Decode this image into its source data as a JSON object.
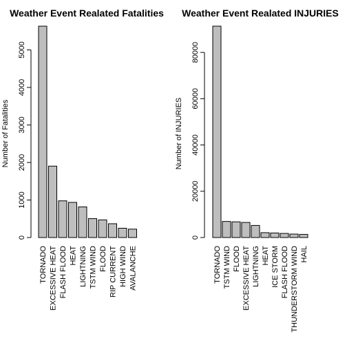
{
  "chart_data": [
    {
      "type": "bar",
      "title": "Weather Event Realated Fatalities",
      "xlabel": "",
      "ylabel": "Number of Fatalities",
      "ylim": [
        0,
        5633
      ],
      "yticks": [
        0,
        1000,
        2000,
        3000,
        4000,
        5000
      ],
      "categories": [
        "TORNADO",
        "EXCESSIVE HEAT",
        "FLASH FLOOD",
        "HEAT",
        "LIGHTNING",
        "TSTM WIND",
        "FLOOD",
        "RIP CURRENT",
        "HIGH WIND",
        "AVALANCHE"
      ],
      "values": [
        5633,
        1903,
        978,
        937,
        816,
        504,
        470,
        368,
        248,
        224
      ],
      "bar_color": "#bebebe",
      "grid": false
    },
    {
      "type": "bar",
      "title": "Weather Event Realated INJURIES",
      "xlabel": "",
      "ylabel": "Number of INJURIES",
      "ylim": [
        0,
        91346
      ],
      "yticks": [
        0,
        20000,
        40000,
        60000,
        80000
      ],
      "categories": [
        "TORNADO",
        "TSTM WIND",
        "FLOOD",
        "EXCESSIVE HEAT",
        "LIGHTNING",
        "HEAT",
        "ICE STORM",
        "FLASH FLOOD",
        "THUNDERSTORM WIND",
        "HAIL"
      ],
      "values": [
        91346,
        6957,
        6789,
        6525,
        5230,
        2100,
        1975,
        1777,
        1488,
        1361
      ],
      "bar_color": "#bebebe",
      "grid": false
    }
  ]
}
